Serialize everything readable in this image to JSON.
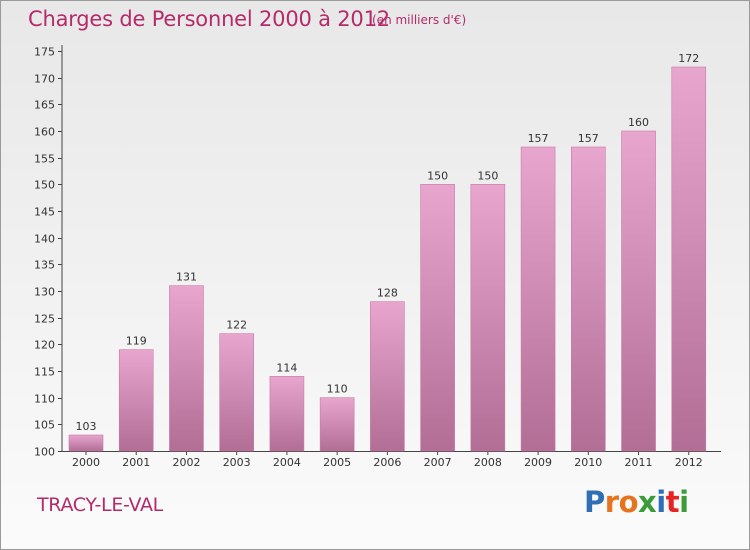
{
  "header": {
    "title": "Charges de Personnel 2000 à 2012",
    "subtitle": "(en milliers d'€)"
  },
  "footer": {
    "commune": "TRACY-LE-VAL",
    "logo_text": "Proxiti",
    "logo_colors": [
      "#2f6fb5",
      "#e6731e",
      "#e6731e",
      "#3a9d3a",
      "#2f6fb5",
      "#e62424",
      "#3a9d3a"
    ]
  },
  "chart_data": {
    "type": "bar",
    "title": "Charges de Personnel 2000 à 2012",
    "subtitle": "(en milliers d'€)",
    "categories": [
      "2000",
      "2001",
      "2002",
      "2003",
      "2004",
      "2005",
      "2006",
      "2007",
      "2008",
      "2009",
      "2010",
      "2011",
      "2012"
    ],
    "values": [
      103,
      119,
      131,
      122,
      114,
      110,
      128,
      150,
      150,
      157,
      157,
      160,
      172
    ],
    "ylim": [
      100,
      175
    ],
    "yticks": [
      100,
      105,
      110,
      115,
      120,
      125,
      130,
      135,
      140,
      145,
      150,
      155,
      160,
      165,
      170,
      175
    ],
    "grid": false,
    "bar_color_top": "#e8a6cf",
    "bar_color_bottom": "#b26e95"
  }
}
